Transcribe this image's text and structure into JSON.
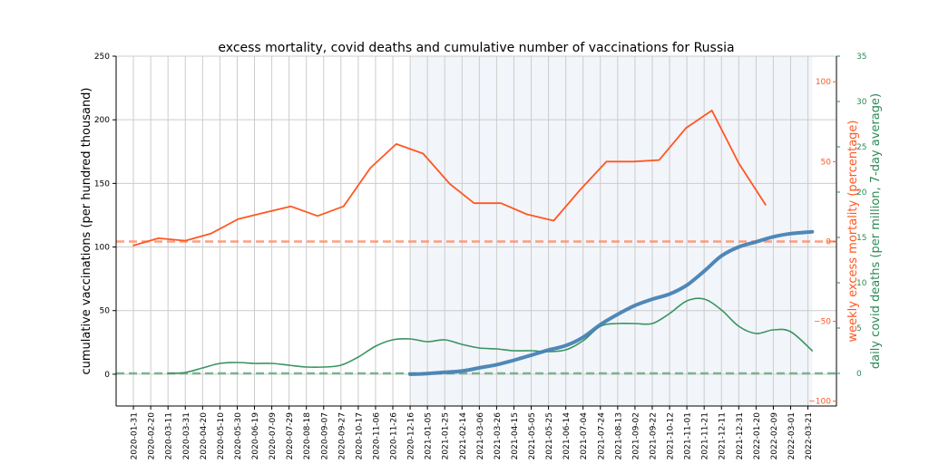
{
  "chart_data": {
    "type": "line",
    "title": "excess mortality, covid deaths and cumulative number of vaccinations for Russia",
    "xlabel": "",
    "x_tick_labels": [
      "2020-01-31",
      "2020-02-20",
      "2020-03-11",
      "2020-03-31",
      "2020-04-20",
      "2020-05-10",
      "2020-05-30",
      "2020-06-19",
      "2020-07-09",
      "2020-07-29",
      "2020-08-18",
      "2020-09-07",
      "2020-09-27",
      "2020-10-17",
      "2020-11-06",
      "2020-11-26",
      "2020-12-16",
      "2021-01-05",
      "2021-01-25",
      "2021-02-14",
      "2021-03-06",
      "2021-03-26",
      "2021-04-15",
      "2021-05-05",
      "2021-05-25",
      "2021-06-14",
      "2021-07-04",
      "2021-07-24",
      "2021-08-13",
      "2021-09-02",
      "2021-09-22",
      "2021-10-12",
      "2021-11-01",
      "2021-11-21",
      "2021-12-11",
      "2021-12-31",
      "2022-01-20",
      "2022-02-09",
      "2022-03-01",
      "2022-03-21"
    ],
    "x_range": [
      "2020-01-11",
      "2022-04-23"
    ],
    "grid": true,
    "shaded_region": {
      "start": "2020-12-16",
      "end": "2022-03-26",
      "color": "#f2f5fa"
    },
    "axes": {
      "left": {
        "label": "cumulative vaccinations (per hundred thousand)",
        "ylim": [
          -25,
          250
        ],
        "ticks": [
          0,
          50,
          100,
          150,
          200,
          250
        ],
        "color": "#000000"
      },
      "right_excess": {
        "label": "weekly excess mortality (percentage)",
        "ylim": [
          -103,
          116
        ],
        "ticks": [
          -100,
          -50,
          0,
          50,
          100
        ],
        "color": "#ff5722"
      },
      "right_deaths": {
        "label": "daily covid deaths (per million, 7-day average)",
        "ylim": [
          -3.6,
          35
        ],
        "ticks": [
          0,
          5,
          10,
          15,
          20,
          25,
          30,
          35
        ],
        "color": "#2e8b57"
      }
    },
    "reference_lines": [
      {
        "name": "excess-zero-line",
        "axis": "right_excess",
        "value": 0,
        "color": "#ff8c69",
        "style": "dashed"
      },
      {
        "name": "deaths-zero-line",
        "axis": "right_deaths",
        "value": 0,
        "color": "#66aa80",
        "style": "dashed"
      }
    ],
    "series": [
      {
        "name": "weekly excess mortality (percentage)",
        "axis": "right_excess",
        "color": "#ff5722",
        "points": [
          [
            "2020-01-31",
            -2.5
          ],
          [
            "2020-02-29",
            2
          ],
          [
            "2020-03-31",
            0.5
          ],
          [
            "2020-04-30",
            5
          ],
          [
            "2020-05-31",
            14
          ],
          [
            "2020-06-30",
            18
          ],
          [
            "2020-07-31",
            22
          ],
          [
            "2020-08-31",
            16
          ],
          [
            "2020-09-30",
            22
          ],
          [
            "2020-10-31",
            46
          ],
          [
            "2020-11-30",
            61
          ],
          [
            "2020-12-31",
            55
          ],
          [
            "2021-01-31",
            36
          ],
          [
            "2021-02-28",
            24
          ],
          [
            "2021-03-31",
            24
          ],
          [
            "2021-04-30",
            17
          ],
          [
            "2021-05-31",
            13
          ],
          [
            "2021-06-30",
            32
          ],
          [
            "2021-07-31",
            50
          ],
          [
            "2021-08-31",
            50
          ],
          [
            "2021-09-30",
            51
          ],
          [
            "2021-10-31",
            71
          ],
          [
            "2021-11-30",
            82
          ],
          [
            "2021-12-31",
            49
          ],
          [
            "2022-01-31",
            23
          ]
        ]
      },
      {
        "name": "daily covid deaths (per million, 7-day average)",
        "axis": "right_deaths",
        "color": "#3a9460",
        "points": [
          [
            "2020-03-11",
            0
          ],
          [
            "2020-03-31",
            0.1
          ],
          [
            "2020-04-20",
            0.6
          ],
          [
            "2020-05-10",
            1.1
          ],
          [
            "2020-05-30",
            1.2
          ],
          [
            "2020-06-19",
            1.1
          ],
          [
            "2020-07-09",
            1.1
          ],
          [
            "2020-07-29",
            0.9
          ],
          [
            "2020-08-18",
            0.7
          ],
          [
            "2020-09-07",
            0.7
          ],
          [
            "2020-09-27",
            0.9
          ],
          [
            "2020-10-17",
            1.8
          ],
          [
            "2020-11-06",
            3.0
          ],
          [
            "2020-11-26",
            3.7
          ],
          [
            "2020-12-16",
            3.8
          ],
          [
            "2021-01-05",
            3.5
          ],
          [
            "2021-01-25",
            3.7
          ],
          [
            "2021-02-14",
            3.2
          ],
          [
            "2021-03-06",
            2.8
          ],
          [
            "2021-03-26",
            2.7
          ],
          [
            "2021-04-15",
            2.5
          ],
          [
            "2021-05-05",
            2.5
          ],
          [
            "2021-05-25",
            2.4
          ],
          [
            "2021-06-14",
            2.6
          ],
          [
            "2021-07-04",
            3.6
          ],
          [
            "2021-07-24",
            5.2
          ],
          [
            "2021-08-13",
            5.5
          ],
          [
            "2021-09-02",
            5.5
          ],
          [
            "2021-09-22",
            5.5
          ],
          [
            "2021-10-12",
            6.6
          ],
          [
            "2021-11-01",
            8.0
          ],
          [
            "2021-11-21",
            8.2
          ],
          [
            "2021-12-11",
            7.0
          ],
          [
            "2021-12-31",
            5.2
          ],
          [
            "2022-01-20",
            4.4
          ],
          [
            "2022-02-09",
            4.8
          ],
          [
            "2022-03-01",
            4.6
          ],
          [
            "2022-03-26",
            2.5
          ]
        ]
      },
      {
        "name": "cumulative vaccinations (per hundred thousand)",
        "axis": "left",
        "color": "#4682b4",
        "points": [
          [
            "2020-12-16",
            0
          ],
          [
            "2021-01-05",
            0.5
          ],
          [
            "2021-01-25",
            1.5
          ],
          [
            "2021-02-14",
            2.5
          ],
          [
            "2021-03-06",
            5
          ],
          [
            "2021-03-26",
            7.5
          ],
          [
            "2021-04-15",
            11
          ],
          [
            "2021-05-05",
            15
          ],
          [
            "2021-05-25",
            19
          ],
          [
            "2021-06-14",
            22.5
          ],
          [
            "2021-07-04",
            29
          ],
          [
            "2021-07-24",
            39
          ],
          [
            "2021-08-13",
            47
          ],
          [
            "2021-09-02",
            54
          ],
          [
            "2021-09-22",
            59
          ],
          [
            "2021-10-12",
            63
          ],
          [
            "2021-11-01",
            70
          ],
          [
            "2021-11-21",
            81
          ],
          [
            "2021-12-11",
            93
          ],
          [
            "2021-12-31",
            100
          ],
          [
            "2022-01-20",
            104
          ],
          [
            "2022-02-09",
            108
          ],
          [
            "2022-03-01",
            110.5
          ],
          [
            "2022-03-26",
            112
          ]
        ]
      }
    ]
  }
}
